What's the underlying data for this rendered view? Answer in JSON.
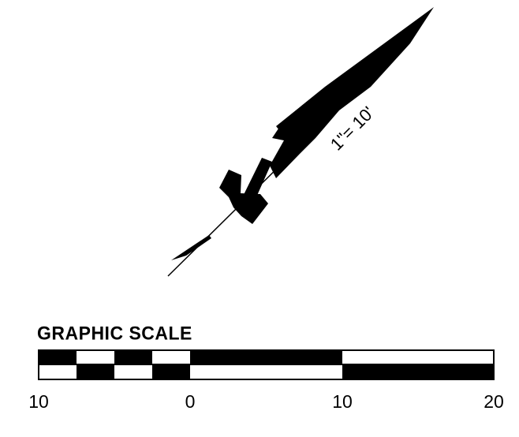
{
  "north_arrow": {
    "scale_note": "1\"= 10'"
  },
  "graphic_scale": {
    "title": "GRAPHIC SCALE",
    "tick_labels": [
      "10",
      "0",
      "10",
      "20"
    ]
  },
  "colors": {
    "ink": "#000000",
    "paper": "#ffffff"
  }
}
